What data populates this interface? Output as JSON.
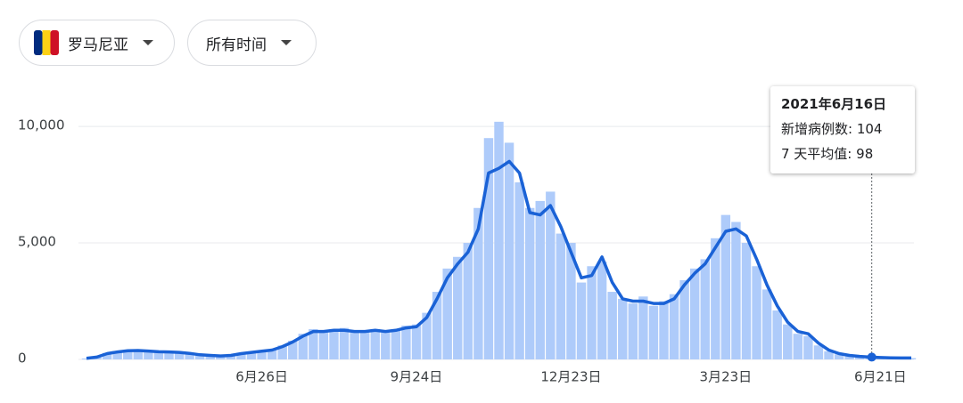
{
  "controls": {
    "region": "罗马尼亚",
    "period": "所有时间"
  },
  "chart_data": {
    "type": "bar",
    "categories": [
      null,
      null,
      null,
      null,
      null,
      null,
      null,
      null,
      null,
      null,
      null,
      null,
      null,
      null,
      null,
      null,
      null,
      "6月26日",
      null,
      null,
      null,
      null,
      null,
      null,
      null,
      null,
      null,
      null,
      null,
      null,
      null,
      null,
      "9月24日",
      null,
      null,
      null,
      null,
      null,
      null,
      null,
      null,
      null,
      null,
      null,
      null,
      null,
      null,
      "12月23日",
      null,
      null,
      null,
      null,
      null,
      null,
      null,
      null,
      null,
      null,
      null,
      null,
      null,
      null,
      "3月23日",
      null,
      null,
      null,
      null,
      null,
      null,
      null,
      null,
      null,
      null,
      null,
      null,
      null,
      null,
      "6月21日",
      null,
      null,
      null
    ],
    "series": [
      {
        "type": "bar",
        "color": "#aecbfa",
        "values": [
          40,
          120,
          280,
          350,
          400,
          420,
          380,
          340,
          330,
          310,
          250,
          190,
          160,
          140,
          180,
          260,
          320,
          380,
          420,
          600,
          800,
          1100,
          1300,
          1250,
          1300,
          1350,
          1150,
          1250,
          1300,
          1150,
          1300,
          1450,
          1500,
          2000,
          2900,
          3900,
          4400,
          5000,
          6500,
          9500,
          10200,
          9300,
          7600,
          6500,
          6800,
          7200,
          5400,
          5000,
          3300,
          4000,
          4200,
          2900,
          2600,
          2400,
          2700,
          2300,
          2500,
          2800,
          3400,
          3900,
          4300,
          5200,
          6200,
          5900,
          5000,
          4000,
          3000,
          2100,
          1500,
          1100,
          1000,
          600,
          350,
          220,
          150,
          120,
          104,
          90,
          70,
          60,
          55
        ]
      },
      {
        "type": "line",
        "color": "#1a62d6",
        "values": [
          50,
          100,
          250,
          320,
          370,
          380,
          360,
          330,
          320,
          300,
          260,
          200,
          170,
          150,
          170,
          250,
          300,
          350,
          400,
          550,
          750,
          1000,
          1200,
          1200,
          1250,
          1250,
          1200,
          1200,
          1250,
          1200,
          1250,
          1350,
          1400,
          1800,
          2600,
          3500,
          4100,
          4600,
          5600,
          8000,
          8200,
          8500,
          8000,
          6300,
          6200,
          6600,
          5700,
          4600,
          3500,
          3600,
          4400,
          3300,
          2600,
          2500,
          2500,
          2400,
          2400,
          2600,
          3200,
          3700,
          4100,
          4800,
          5500,
          5600,
          5300,
          4300,
          3200,
          2300,
          1600,
          1200,
          1100,
          700,
          400,
          250,
          170,
          130,
          100,
          80,
          70,
          60,
          60
        ]
      }
    ],
    "ylim": [
      0,
      10500
    ],
    "yticks": [
      0,
      {
        "value": 5000,
        "label": "5,000"
      },
      {
        "value": 10000,
        "label": "10,000"
      }
    ],
    "grid": true,
    "tooltip": {
      "title": "2021年6月16日",
      "rows": [
        {
          "label": "新增病例数:",
          "value": 104
        },
        {
          "label": "7 天平均值:",
          "value": 98
        }
      ]
    }
  }
}
